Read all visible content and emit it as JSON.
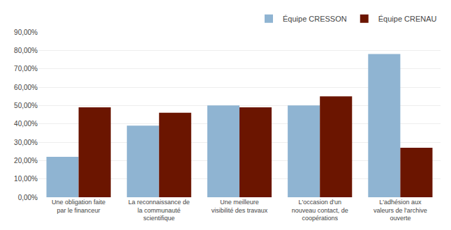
{
  "chart_data": {
    "type": "bar",
    "categories": [
      "Une obligation faite\npar le financeur",
      "La reconnaissance de\nla communauté\nscientifique",
      "Une meilleure\nvisibilité des travaux",
      "L'occasion d'un\nnouveau contact, de\ncoopérations",
      "L'adhésion aux\nvaleurs de l'archive\nouverte"
    ],
    "series": [
      {
        "name": "Équipe CRESSON",
        "color": "#8fb4d2",
        "values": [
          22.0,
          39.0,
          50.0,
          50.0,
          78.0
        ]
      },
      {
        "name": "Équipe CRENAU",
        "color": "#6b1500",
        "values": [
          49.0,
          46.0,
          49.0,
          55.0,
          27.0
        ]
      }
    ],
    "ylim": [
      0,
      90
    ],
    "yticks": [
      {
        "value": 0,
        "label": "0,00%"
      },
      {
        "value": 10,
        "label": "10,00%"
      },
      {
        "value": 20,
        "label": "20,00%"
      },
      {
        "value": 30,
        "label": "30,00%"
      },
      {
        "value": 40,
        "label": "40,00%"
      },
      {
        "value": 50,
        "label": "50,00%"
      },
      {
        "value": 60,
        "label": "60,00%"
      },
      {
        "value": 70,
        "label": "70,00%"
      },
      {
        "value": 80,
        "label": "80,00%"
      },
      {
        "value": 90,
        "label": "90,00%"
      }
    ],
    "grid": true,
    "legend": "upper right"
  }
}
